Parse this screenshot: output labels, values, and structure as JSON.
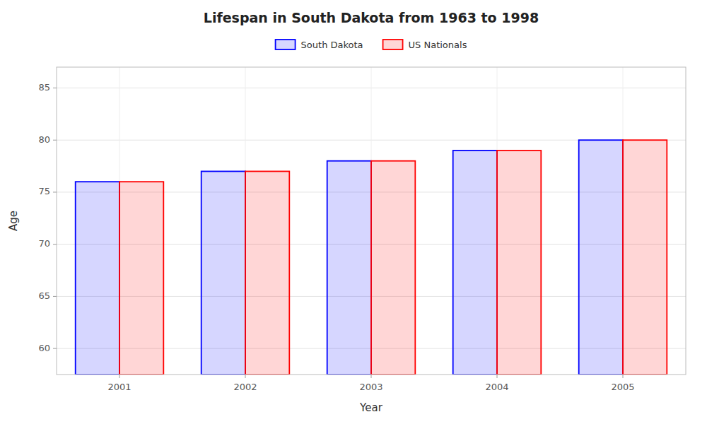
{
  "chart_data": {
    "type": "bar",
    "title": "Lifespan in South Dakota from 1963 to 1998",
    "xlabel": "Year",
    "ylabel": "Age",
    "categories": [
      "2001",
      "2002",
      "2003",
      "2004",
      "2005"
    ],
    "series": [
      {
        "name": "South Dakota",
        "color": "#0000ff",
        "values": [
          76,
          77,
          78,
          79,
          80
        ]
      },
      {
        "name": "US Nationals",
        "color": "#ff0000",
        "values": [
          76,
          77,
          78,
          79,
          80
        ]
      }
    ],
    "ylim": [
      57.5,
      87
    ],
    "yticks": [
      60,
      65,
      70,
      75,
      80,
      85
    ],
    "grid": true,
    "legend": "top"
  }
}
